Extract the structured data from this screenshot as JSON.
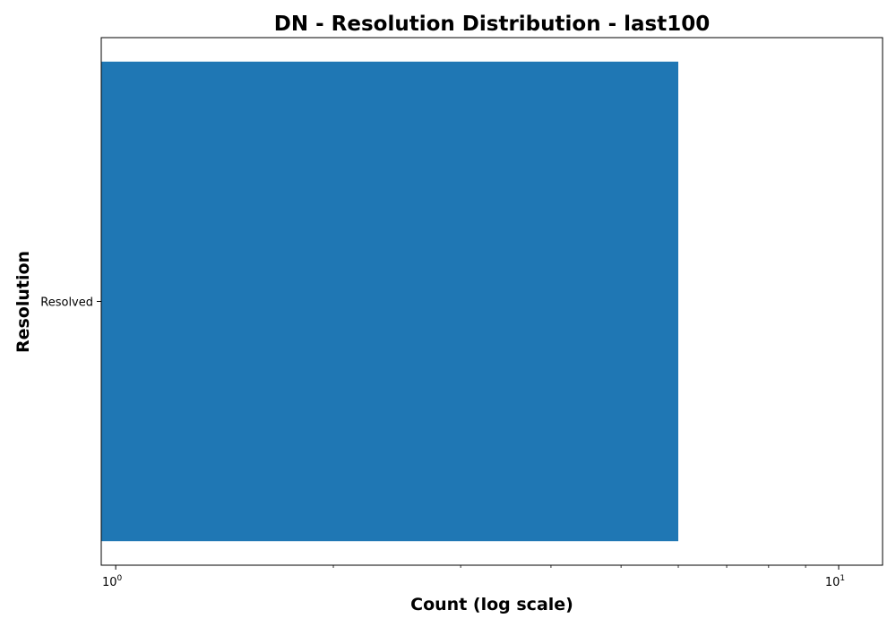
{
  "chart_data": {
    "type": "bar",
    "orientation": "horizontal",
    "title": "DN - Resolution Distribution - last100",
    "xlabel": "Count (log scale)",
    "ylabel": "Resolution",
    "categories": [
      "Resolved"
    ],
    "values": [
      6
    ],
    "x_scale": "log",
    "xlim": [
      0.955,
      11.5
    ],
    "x_ticks": [
      {
        "value": 1,
        "base": "10",
        "exp": "0"
      },
      {
        "value": 10,
        "base": "10",
        "exp": "1"
      }
    ],
    "x_minor_ticks": [
      2,
      3,
      4,
      5,
      6,
      7,
      8,
      9
    ],
    "grid": false,
    "legend": "none",
    "colors": {
      "bar": "#1f77b4",
      "axes": "#000000"
    }
  }
}
